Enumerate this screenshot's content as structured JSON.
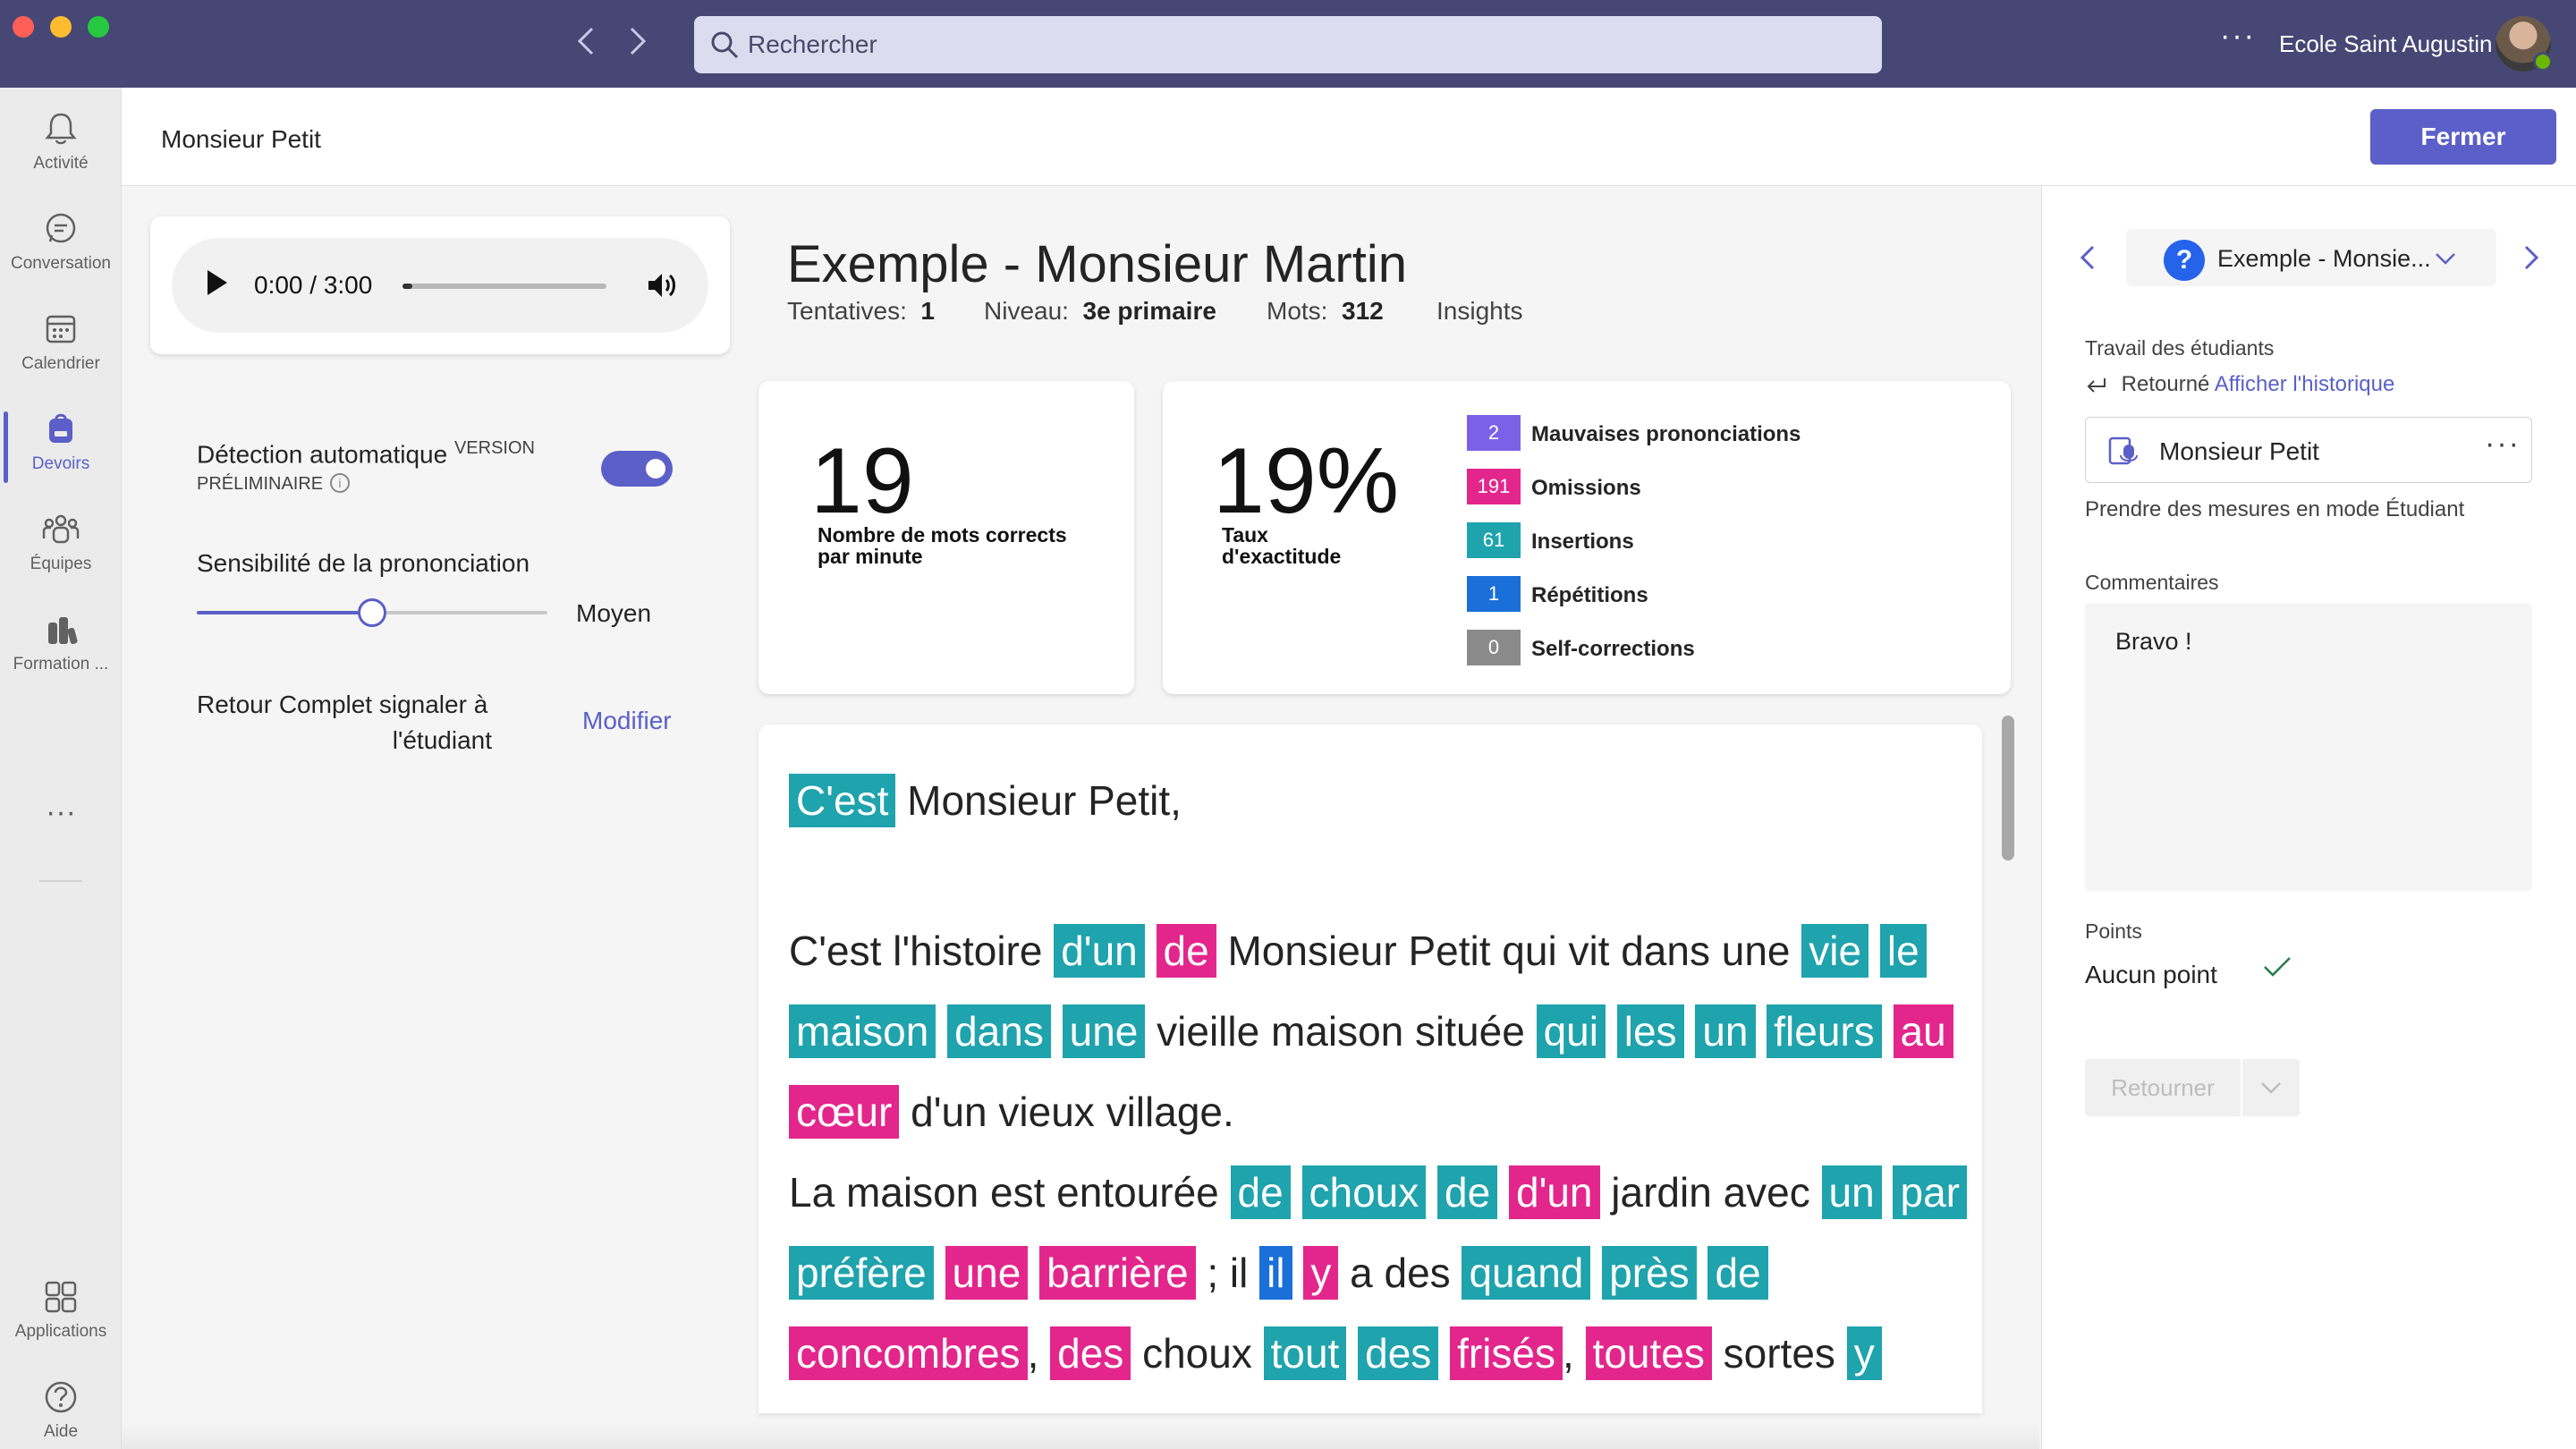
{
  "titlebar": {
    "search_placeholder": "Rechercher",
    "more_label": "···",
    "org_name": "Ecole Saint Augustin"
  },
  "rail": {
    "items": [
      {
        "label": "Activité",
        "icon": "bell-icon"
      },
      {
        "label": "Conversation",
        "icon": "chat-icon"
      },
      {
        "label": "Calendrier",
        "icon": "calendar-icon"
      },
      {
        "label": "Devoirs",
        "icon": "backpack-icon",
        "active": true
      },
      {
        "label": "Équipes",
        "icon": "teams-icon"
      },
      {
        "label": "Formation ...",
        "icon": "learning-icon"
      }
    ],
    "more_label": "···",
    "bottom_items": [
      {
        "label": "Applications",
        "icon": "apps-icon"
      },
      {
        "label": "Aide",
        "icon": "help-icon"
      }
    ]
  },
  "header": {
    "student_name": "Monsieur Petit",
    "close_label": "Fermer"
  },
  "audio": {
    "time": "0:00 / 3:00",
    "progress": 0.05
  },
  "settings": {
    "auto_detect_label": "Détection automatique",
    "auto_detect_tag_1": "VERSION",
    "auto_detect_tag_2": "PRÉLIMINAIRE",
    "info_icon": "i",
    "auto_detect_on": true,
    "sensitivity_label": "Sensibilité de la prononciation",
    "sensitivity_value": "Moyen",
    "sensitivity_level": 0.5,
    "feedback_label_1": "Retour Complet signaler à",
    "feedback_label_2": "l'étudiant",
    "modify_label": "Modifier"
  },
  "report": {
    "title": "Exemple - Monsieur Martin",
    "attempts_label": "Tentatives:",
    "attempts_value": "1",
    "level_label": "Niveau:",
    "level_value": "3e primaire",
    "words_label": "Mots:",
    "words_value": "312",
    "insights_label": "Insights"
  },
  "stats": {
    "wcpm_value": "19",
    "wcpm_caption_1": "Nombre de mots corrects",
    "wcpm_caption_2": "par minute",
    "accuracy_value": "19%",
    "accuracy_caption_1": "Taux",
    "accuracy_caption_2": "d'exactitude",
    "legend": [
      {
        "count": "2",
        "label": "Mauvaises prononciations",
        "color": "#7b61e8"
      },
      {
        "count": "191",
        "label": "Omissions",
        "color": "#e3268c"
      },
      {
        "count": "61",
        "label": "Insertions",
        "color": "#1fa3ad"
      },
      {
        "count": "1",
        "label": "Répétitions",
        "color": "#1b6fd8"
      },
      {
        "count": "0",
        "label": "Self-corrections",
        "color": "#8a8a8a"
      }
    ]
  },
  "passage": {
    "colors": {
      "insertion": "#1fa3ad",
      "omission": "#e3268c",
      "repetition": "#1b6fd8"
    },
    "paragraphs": [
      [
        {
          "t": "C'est",
          "k": "insertion"
        },
        {
          "t": " Monsieur Petit,"
        }
      ],
      [
        {
          "t": "C'est l'histoire "
        },
        {
          "t": "d'un",
          "k": "insertion"
        },
        {
          "t": " "
        },
        {
          "t": "de",
          "k": "omission"
        },
        {
          "t": " Monsieur Petit qui vit dans une "
        },
        {
          "t": "vie",
          "k": "insertion"
        },
        {
          "t": " "
        },
        {
          "t": "le",
          "k": "insertion"
        },
        {
          "t": " "
        },
        {
          "t": "maison",
          "k": "insertion"
        },
        {
          "t": " "
        },
        {
          "t": "dans",
          "k": "insertion"
        },
        {
          "t": " "
        },
        {
          "t": "une",
          "k": "insertion"
        },
        {
          "t": " vieille maison située "
        },
        {
          "t": "qui",
          "k": "insertion"
        },
        {
          "t": " "
        },
        {
          "t": "les",
          "k": "insertion"
        },
        {
          "t": " "
        },
        {
          "t": "un",
          "k": "insertion"
        },
        {
          "t": " "
        },
        {
          "t": "fleurs",
          "k": "insertion"
        },
        {
          "t": " "
        },
        {
          "t": "au",
          "k": "omission"
        },
        {
          "t": " "
        },
        {
          "t": "cœur",
          "k": "omission"
        },
        {
          "t": " d'un vieux village."
        }
      ],
      [
        {
          "t": "La maison est entourée "
        },
        {
          "t": "de",
          "k": "insertion"
        },
        {
          "t": " "
        },
        {
          "t": "choux",
          "k": "insertion"
        },
        {
          "t": " "
        },
        {
          "t": "de",
          "k": "insertion"
        },
        {
          "t": " "
        },
        {
          "t": "d'un",
          "k": "omission"
        },
        {
          "t": " jardin avec "
        },
        {
          "t": "un",
          "k": "insertion"
        },
        {
          "t": " "
        },
        {
          "t": "par",
          "k": "insertion"
        },
        {
          "t": " "
        },
        {
          "t": "préfère",
          "k": "insertion"
        },
        {
          "t": " "
        },
        {
          "t": "une",
          "k": "omission"
        },
        {
          "t": " "
        },
        {
          "t": "barrière",
          "k": "omission"
        },
        {
          "t": " ; il "
        },
        {
          "t": "il",
          "k": "repetition"
        },
        {
          "t": " "
        },
        {
          "t": "y",
          "k": "omission"
        },
        {
          "t": " a des "
        },
        {
          "t": "quand",
          "k": "insertion"
        },
        {
          "t": " "
        },
        {
          "t": "près",
          "k": "insertion"
        },
        {
          "t": " "
        },
        {
          "t": "de",
          "k": "insertion"
        },
        {
          "t": " "
        },
        {
          "t": "concombres",
          "k": "omission"
        },
        {
          "t": ", "
        },
        {
          "t": "des",
          "k": "omission"
        },
        {
          "t": " choux "
        },
        {
          "t": "tout",
          "k": "insertion"
        },
        {
          "t": " "
        },
        {
          "t": "des",
          "k": "insertion"
        },
        {
          "t": " "
        },
        {
          "t": "frisés",
          "k": "omission"
        },
        {
          "t": ", "
        },
        {
          "t": "toutes",
          "k": "omission"
        },
        {
          "t": " sortes "
        },
        {
          "t": "y",
          "k": "insertion"
        }
      ]
    ]
  },
  "right_panel": {
    "selector_label": "Exemple - Monsie...",
    "student_work_label": "Travail des étudiants",
    "returned_label": "Retourné",
    "history_link": "Afficher l'historique",
    "student_name": "Monsieur Petit",
    "more_label": "···",
    "student_view_link": "Prendre des mesures en mode Étudiant",
    "comments_label": "Commentaires",
    "comment_text": "Bravo !",
    "points_label": "Points",
    "points_value": "Aucun point",
    "return_label": "Retourner"
  }
}
